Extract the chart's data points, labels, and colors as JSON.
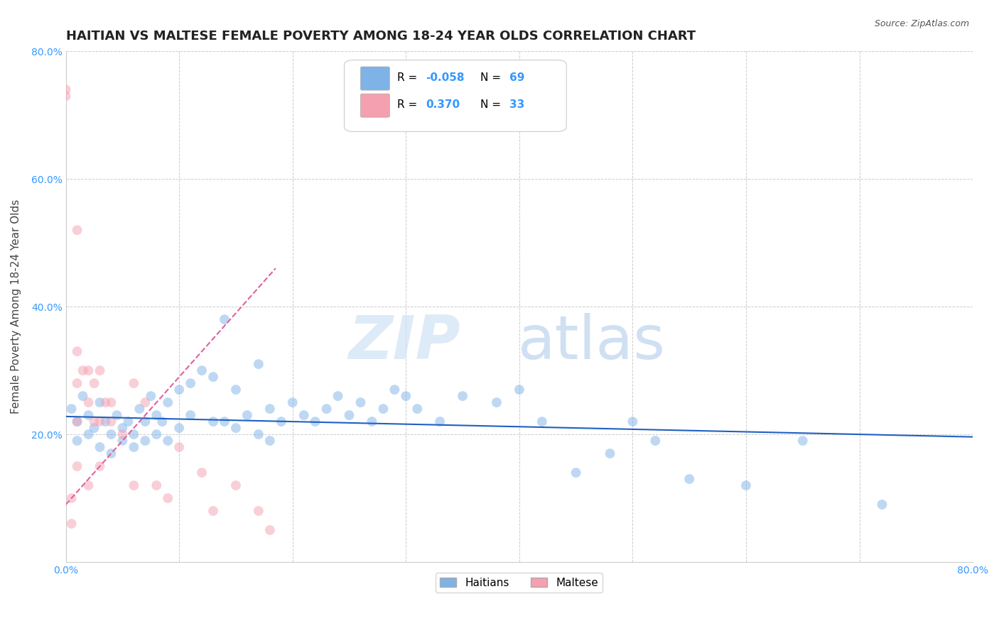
{
  "title": "HAITIAN VS MALTESE FEMALE POVERTY AMONG 18-24 YEAR OLDS CORRELATION CHART",
  "source": "Source: ZipAtlas.com",
  "ylabel": "Female Poverty Among 18-24 Year Olds",
  "xlim": [
    0.0,
    0.8
  ],
  "ylim": [
    0.0,
    0.8
  ],
  "background_color": "#ffffff",
  "grid_color": "#cccccc",
  "haitian_R": -0.058,
  "haitian_N": 69,
  "maltese_R": 0.37,
  "maltese_N": 33,
  "haitian_color": "#7fb3e8",
  "maltese_color": "#f4a0b0",
  "haitian_line_color": "#2060c0",
  "maltese_line_color": "#e060a0",
  "haitian_scatter_x": [
    0.005,
    0.01,
    0.01,
    0.015,
    0.02,
    0.02,
    0.025,
    0.03,
    0.03,
    0.035,
    0.04,
    0.04,
    0.045,
    0.05,
    0.05,
    0.055,
    0.06,
    0.06,
    0.065,
    0.07,
    0.07,
    0.075,
    0.08,
    0.08,
    0.085,
    0.09,
    0.09,
    0.1,
    0.1,
    0.11,
    0.11,
    0.12,
    0.13,
    0.13,
    0.14,
    0.14,
    0.15,
    0.15,
    0.16,
    0.17,
    0.17,
    0.18,
    0.18,
    0.19,
    0.2,
    0.21,
    0.22,
    0.23,
    0.24,
    0.25,
    0.26,
    0.27,
    0.28,
    0.29,
    0.3,
    0.31,
    0.33,
    0.35,
    0.38,
    0.4,
    0.42,
    0.45,
    0.48,
    0.5,
    0.52,
    0.55,
    0.6,
    0.65,
    0.72
  ],
  "haitian_scatter_y": [
    0.24,
    0.22,
    0.19,
    0.26,
    0.23,
    0.2,
    0.21,
    0.25,
    0.18,
    0.22,
    0.2,
    0.17,
    0.23,
    0.21,
    0.19,
    0.22,
    0.2,
    0.18,
    0.24,
    0.22,
    0.19,
    0.26,
    0.23,
    0.2,
    0.22,
    0.25,
    0.19,
    0.27,
    0.21,
    0.23,
    0.28,
    0.3,
    0.29,
    0.22,
    0.38,
    0.22,
    0.27,
    0.21,
    0.23,
    0.31,
    0.2,
    0.24,
    0.19,
    0.22,
    0.25,
    0.23,
    0.22,
    0.24,
    0.26,
    0.23,
    0.25,
    0.22,
    0.24,
    0.27,
    0.26,
    0.24,
    0.22,
    0.26,
    0.25,
    0.27,
    0.22,
    0.14,
    0.17,
    0.22,
    0.19,
    0.13,
    0.12,
    0.19,
    0.09
  ],
  "maltese_scatter_x": [
    0.0,
    0.0,
    0.005,
    0.005,
    0.01,
    0.01,
    0.01,
    0.01,
    0.01,
    0.015,
    0.02,
    0.02,
    0.02,
    0.025,
    0.025,
    0.03,
    0.03,
    0.03,
    0.035,
    0.04,
    0.04,
    0.05,
    0.06,
    0.06,
    0.07,
    0.08,
    0.09,
    0.1,
    0.12,
    0.13,
    0.15,
    0.17,
    0.18
  ],
  "maltese_scatter_y": [
    0.74,
    0.73,
    0.1,
    0.06,
    0.52,
    0.33,
    0.28,
    0.22,
    0.15,
    0.3,
    0.3,
    0.25,
    0.12,
    0.28,
    0.22,
    0.3,
    0.22,
    0.15,
    0.25,
    0.25,
    0.22,
    0.2,
    0.28,
    0.12,
    0.25,
    0.12,
    0.1,
    0.18,
    0.14,
    0.08,
    0.12,
    0.08,
    0.05
  ],
  "haitian_trend_x": [
    0.0,
    0.8
  ],
  "haitian_trend_y": [
    0.228,
    0.196
  ],
  "maltese_trend_x": [
    0.0,
    0.185
  ],
  "maltese_trend_y": [
    0.09,
    0.46
  ],
  "title_fontsize": 13,
  "axis_label_fontsize": 11,
  "tick_fontsize": 10,
  "marker_size": 100,
  "marker_alpha": 0.5
}
